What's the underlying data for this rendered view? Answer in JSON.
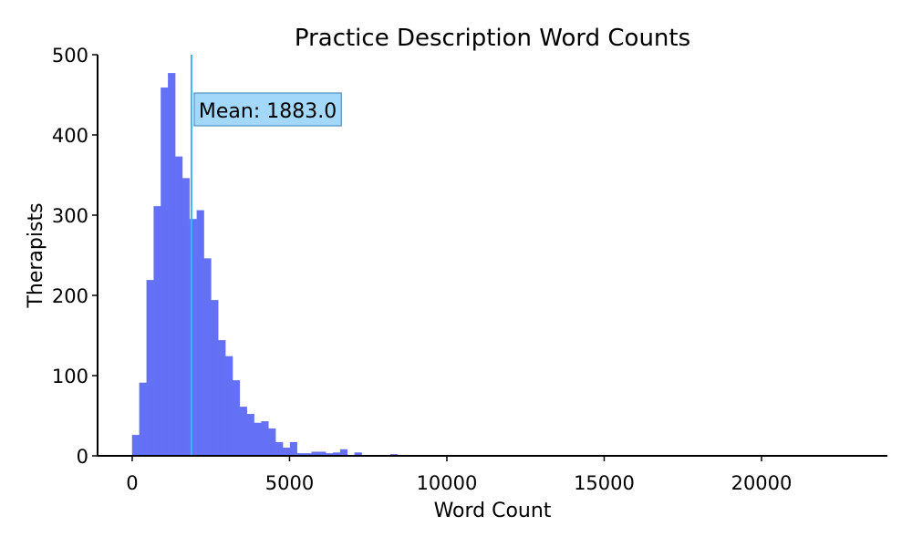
{
  "chart_data": {
    "type": "bar",
    "title": "Practice Description Word Counts",
    "xlabel": "Word Count",
    "ylabel": "Therapists",
    "xlim": [
      -1100,
      24000
    ],
    "ylim": [
      0,
      500
    ],
    "xticks": [
      0,
      5000,
      10000,
      15000,
      20000
    ],
    "yticks": [
      0,
      100,
      200,
      300,
      400,
      500
    ],
    "grid": false,
    "bin_start": 0,
    "bin_width": 228,
    "values": [
      26,
      91,
      219,
      311,
      459,
      477,
      373,
      346,
      295,
      306,
      246,
      194,
      144,
      124,
      94,
      61,
      52,
      41,
      43,
      34,
      17,
      10,
      17,
      3,
      3,
      5,
      5,
      3,
      4,
      8,
      1,
      4,
      0,
      0,
      0,
      1,
      2,
      0,
      0,
      0
    ],
    "bar_color": "#6470f5",
    "mean": {
      "value": 1883.0,
      "label": "Mean: 1883.0",
      "color": "#3db5f5"
    },
    "annotation_bg": "#a3d8fb"
  }
}
